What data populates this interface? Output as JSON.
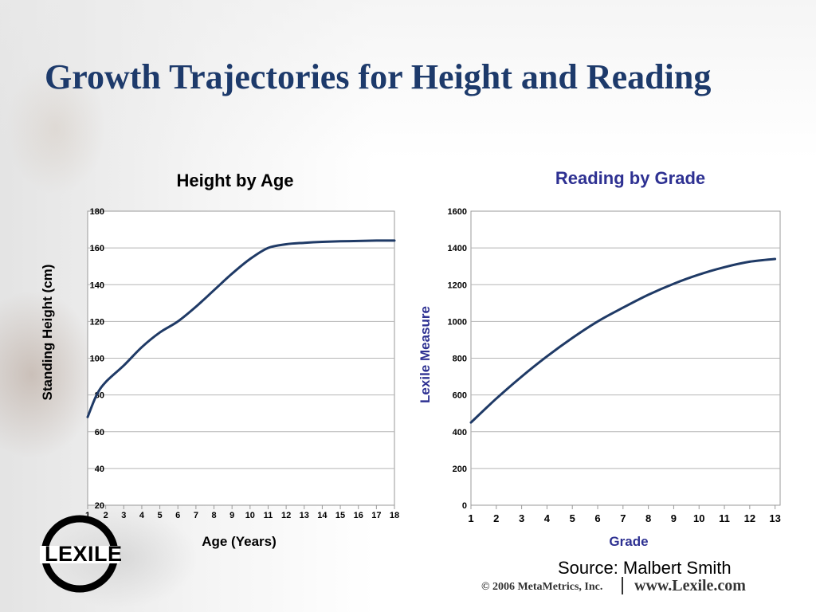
{
  "slide": {
    "title": "Growth Trajectories for Height and Reading",
    "source": "Source: Malbert Smith",
    "logo_text": "LEXILE",
    "copyright": "© 2006 MetaMetrics, Inc.",
    "website": "www.Lexile.com",
    "colors": {
      "title": "#1d3a6b",
      "line": "#1f3a66",
      "blue_label": "#2e3192"
    }
  },
  "chart_data": [
    {
      "type": "line",
      "title": "Height by Age",
      "xlabel": "Age (Years)",
      "ylabel": "Standing Height (cm)",
      "x": [
        1,
        1.5,
        2,
        3,
        4,
        5,
        6,
        7,
        8,
        9,
        10,
        11,
        12,
        13,
        14,
        15,
        16,
        17,
        18
      ],
      "series": [
        {
          "values": [
            68,
            80,
            87,
            96,
            106,
            114,
            120,
            128,
            137,
            146,
            154,
            160,
            162,
            162.8,
            163.3,
            163.6,
            163.8,
            164,
            164
          ]
        }
      ],
      "xticks": [
        "1",
        "2",
        "3",
        "4",
        "5",
        "6",
        "7",
        "8",
        "9",
        "10",
        "11",
        "12",
        "13",
        "14",
        "15",
        "16",
        "17",
        "18"
      ],
      "xlim": [
        1,
        18
      ],
      "ylim": [
        20,
        180
      ],
      "yticks": [
        "20",
        "40",
        "60",
        "80",
        "100",
        "120",
        "140",
        "160",
        "180"
      ],
      "grid": true
    },
    {
      "type": "line",
      "title": "Reading by Grade",
      "xlabel": "Grade",
      "ylabel": "Lexile Measure",
      "x": [
        1,
        2,
        3,
        4,
        5,
        6,
        7,
        8,
        9,
        10,
        11,
        12,
        13
      ],
      "series": [
        {
          "values": [
            450,
            580,
            700,
            810,
            910,
            1000,
            1075,
            1145,
            1205,
            1255,
            1295,
            1325,
            1340
          ]
        }
      ],
      "xticks": [
        "1",
        "2",
        "3",
        "4",
        "5",
        "6",
        "7",
        "8",
        "9",
        "10",
        "11",
        "12",
        "13"
      ],
      "xlim": [
        1,
        13.2
      ],
      "ylim": [
        0,
        1600
      ],
      "yticks": [
        "0",
        "200",
        "400",
        "600",
        "800",
        "1000",
        "1200",
        "1400",
        "1600"
      ],
      "grid": true
    }
  ]
}
